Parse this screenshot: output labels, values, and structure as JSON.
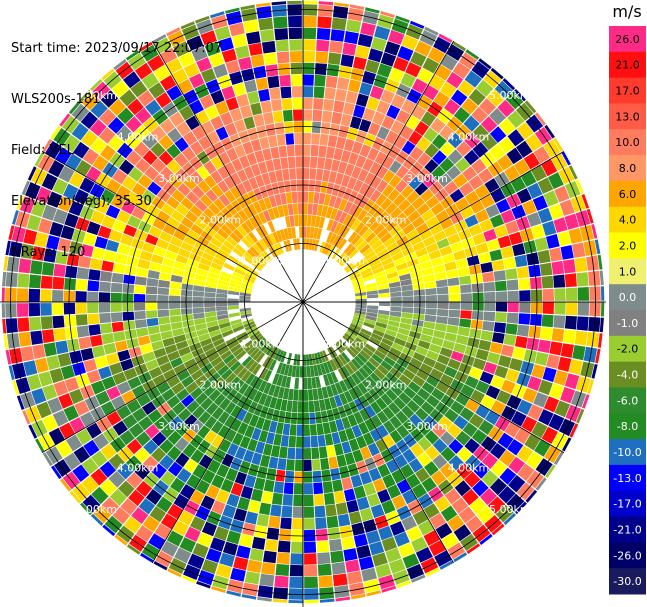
{
  "header": {
    "start_time": "Start time: 2023/09/17 22:07:07",
    "station": "WLS200s-181",
    "field": "Field: VEL",
    "elevation": "Elevation(deg): 35.30",
    "nrays": "NRays: 120"
  },
  "colors": {
    "scale": [
      {
        "label": "26.0",
        "color": "#ff2a86"
      },
      {
        "label": "21.0",
        "color": "#ff0f0f"
      },
      {
        "label": "17.0",
        "color": "#ff3b2e"
      },
      {
        "label": "13.0",
        "color": "#ff5c47"
      },
      {
        "label": "10.0",
        "color": "#ff7d5e"
      },
      {
        "label": "8.0",
        "color": "#ff9766"
      },
      {
        "label": "6.0",
        "color": "#ffa500"
      },
      {
        "label": "4.0",
        "color": "#ffd700"
      },
      {
        "label": "2.0",
        "color": "#ffff00"
      },
      {
        "label": "1.0",
        "color": "#f0f070"
      },
      {
        "label": "0.0",
        "color": "#7f8c8c"
      },
      {
        "label": "-1.0",
        "color": "#808080"
      },
      {
        "label": "-2.0",
        "color": "#9acd32"
      },
      {
        "label": "-4.0",
        "color": "#6b8e23"
      },
      {
        "label": "-6.0",
        "color": "#2e8b2e"
      },
      {
        "label": "-8.0",
        "color": "#228b22"
      },
      {
        "label": "-10.0",
        "color": "#1e6fbf"
      },
      {
        "label": "-13.0",
        "color": "#0000ff"
      },
      {
        "label": "-17.0",
        "color": "#0000cd"
      },
      {
        "label": "-21.0",
        "color": "#00008b"
      },
      {
        "label": "-26.0",
        "color": "#000066"
      },
      {
        "label": "-30.0",
        "color": "#1a1a5e"
      }
    ]
  },
  "chart_data": {
    "type": "heatmap",
    "projection": "polar-ppi",
    "field": "VEL",
    "units": "m/s",
    "nrays": 120,
    "elevation_deg": 35.3,
    "range_rings_km": [
      1.0,
      2.0,
      3.0,
      4.0,
      5.0
    ],
    "ring_labels": [
      "1.00km",
      "2.00km",
      "3.00km",
      "4.00km",
      "5.00km"
    ],
    "colorbar": {
      "title": "m/s",
      "ticks": [
        "26.0",
        "21.0",
        "17.0",
        "13.0",
        "10.0",
        "8.0",
        "6.0",
        "4.0",
        "2.0",
        "1.0",
        "0.0",
        "-1.0",
        "-2.0",
        "-4.0",
        "-6.0",
        "-8.0",
        "-10.0",
        "-13.0",
        "-17.0",
        "-21.0",
        "-26.0",
        "-30.0"
      ]
    }
  }
}
